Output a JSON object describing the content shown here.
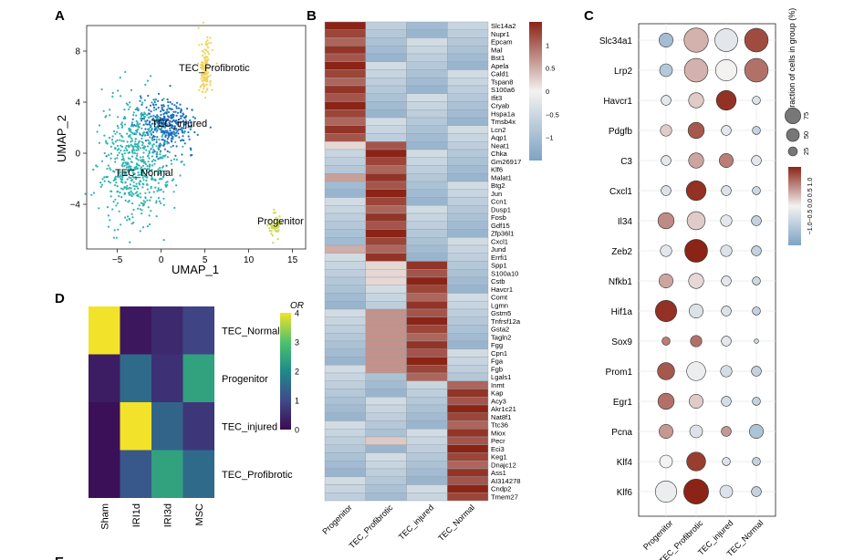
{
  "panels": {
    "A": "A",
    "B": "B",
    "C": "C",
    "D": "D",
    "E": "E"
  },
  "colors": {
    "tec_normal": "#2db3b0",
    "tec_injured": "#1f6fbf",
    "tec_profibrotic": "#f2d35a",
    "progenitor": "#cbd84a",
    "hm_low": "#7ea3c4",
    "hm_mid": "#f3f2f1",
    "hm_high": "#8b2416",
    "or_low": "#3b0a52",
    "or_high": "#f2e32a"
  },
  "chart_data": [
    {
      "type": "scatter",
      "panel": "A",
      "xlabel": "UMAP_1",
      "ylabel": "UMAP_2",
      "xticks": [
        -5,
        0,
        5,
        10,
        15
      ],
      "yticks": [
        8,
        4,
        0,
        -4
      ],
      "xlim": [
        -8.5,
        16.5
      ],
      "ylim": [
        -7.5,
        10
      ],
      "clusters": [
        {
          "label": "TEC_Profibrotic",
          "color": "#f2d35a",
          "cx": 5.0,
          "cy": 6.6,
          "sx": 0.35,
          "sy": 1.1,
          "n": 150
        },
        {
          "label": "TEC_injured",
          "color": "#1f6fbf",
          "cx": 0.6,
          "cy": 2.2,
          "sx": 1.6,
          "sy": 1.0,
          "n": 360
        },
        {
          "label": "TEC_Normal",
          "color": "#2db3b0",
          "cx": -2.8,
          "cy": -0.6,
          "sx": 2.0,
          "sy": 2.3,
          "n": 620
        },
        {
          "label": "Progenitor",
          "color": "#cbd84a",
          "cx": 13.0,
          "cy": -5.7,
          "sx": 0.35,
          "sy": 0.45,
          "n": 60
        }
      ]
    },
    {
      "type": "heatmap",
      "panel": "B",
      "columns": [
        "Progenitor",
        "TEC_Profibrotic",
        "TEC_injured",
        "TEC_Normal"
      ],
      "rows": [
        "Slc14a2",
        "Nupr1",
        "Epcam",
        "Mal",
        "Bst1",
        "Apela",
        "Cald1",
        "Tspan8",
        "S100a6",
        "Ifit3",
        "Cryab",
        "Hspa1a",
        "Tmsb4x",
        "Lcn2",
        "Aqp1",
        "Neat1",
        "Chka",
        "Gm26917",
        "Klf6",
        "Malat1",
        "Btg2",
        "Jun",
        "Ccn1",
        "Dusp1",
        "Fosb",
        "Gdf15",
        "Zfp36l1",
        "Cxcl1",
        "Jund",
        "Errfi1",
        "Spp1",
        "S100a10",
        "Cstb",
        "Havcr1",
        "Comt",
        "Lgmn",
        "Gstm5",
        "Tnfrsf12a",
        "Gsta2",
        "Tagln2",
        "Fgg",
        "Cpn1",
        "Fga",
        "Fgb",
        "Lgals1",
        "Inmt",
        "Kap",
        "Acy3",
        "Akr1c21",
        "Nat8f1",
        "Ttc36",
        "Miox",
        "Pecr",
        "Eci3",
        "Keg1",
        "Dnajc12",
        "Ass1",
        "AI314278",
        "Cndp2",
        "Tmem27"
      ],
      "blocks": [
        [
          0,
          15
        ],
        [
          15,
          30
        ],
        [
          30,
          45
        ],
        [
          45,
          60
        ]
      ],
      "high": 1.5,
      "low": -0.8,
      "legend_ticks": [
        1,
        0.5,
        0,
        -0.5,
        -1
      ],
      "vmin": -1.5,
      "vmax": 1.5
    },
    {
      "type": "dot",
      "panel": "C",
      "genes": [
        "Slc34a1",
        "Lrp2",
        "Havcr1",
        "Pdgfb",
        "C3",
        "Cxcl1",
        "Il34",
        "Zeb2",
        "Nfkb1",
        "Hif1a",
        "Sox9",
        "Prom1",
        "Egr1",
        "Pcna",
        "Klf4",
        "Klf6"
      ],
      "groups": [
        "Progenitor",
        "TEC_Profibrotic",
        "TEC_injured",
        "TEC_Normal"
      ],
      "size_pct": [
        [
          30,
          90,
          80,
          85
        ],
        [
          25,
          85,
          70,
          85
        ],
        [
          15,
          35,
          60,
          10
        ],
        [
          20,
          40,
          15,
          10
        ],
        [
          15,
          35,
          30,
          15
        ],
        [
          15,
          60,
          15,
          10
        ],
        [
          40,
          50,
          20,
          15
        ],
        [
          20,
          80,
          20,
          15
        ],
        [
          30,
          35,
          15,
          10
        ],
        [
          70,
          30,
          15,
          10
        ],
        [
          10,
          20,
          15,
          3
        ],
        [
          45,
          55,
          20,
          15
        ],
        [
          40,
          30,
          15,
          10
        ],
        [
          30,
          25,
          15,
          30
        ],
        [
          25,
          55,
          10,
          10
        ],
        [
          70,
          95,
          25,
          15
        ]
      ],
      "expr": [
        [
          -1.0,
          0.5,
          -0.2,
          1.3
        ],
        [
          -0.8,
          0.5,
          0,
          1.0
        ],
        [
          -0.2,
          0.3,
          1.5,
          -0.3
        ],
        [
          0.3,
          1.2,
          -0.2,
          -0.6
        ],
        [
          -0.2,
          0.6,
          0.9,
          -0.2
        ],
        [
          -0.3,
          1.5,
          -0.3,
          -0.5
        ],
        [
          0.8,
          0.3,
          -0.2,
          -0.6
        ],
        [
          -0.2,
          1.6,
          -0.3,
          -0.6
        ],
        [
          0.6,
          0.2,
          -0.2,
          -0.5
        ],
        [
          1.5,
          -0.3,
          -0.3,
          -0.6
        ],
        [
          0.9,
          1.0,
          -0.2,
          -0.5
        ],
        [
          1.2,
          -0.1,
          -0.4,
          -0.6
        ],
        [
          1.0,
          0.3,
          -0.4,
          -0.6
        ],
        [
          0.7,
          -0.3,
          0.7,
          -0.9
        ],
        [
          0,
          1.4,
          -0.3,
          -0.6
        ],
        [
          -0.1,
          1.6,
          -0.3,
          -0.6
        ]
      ],
      "size_legend_title": "Fraction of cells in group (%)",
      "size_legend_ticks": [
        75,
        50,
        25
      ],
      "color_legend_ticks": "−1.0−0.5 0.0 0.5 1.0",
      "vmin": -1.5,
      "vmax": 1.6
    },
    {
      "type": "heatmap",
      "panel": "D",
      "xlabels": [
        "Sham",
        "IRI1d",
        "IRI3d",
        "MSC"
      ],
      "ylabels": [
        "TEC_Normal",
        "Progenitor",
        "TEC_injured",
        "TEC_Profibrotic"
      ],
      "values": [
        [
          4.0,
          0.2,
          0.5,
          0.9
        ],
        [
          0.3,
          1.5,
          0.6,
          2.4
        ],
        [
          0.1,
          4.0,
          1.4,
          0.7
        ],
        [
          0.1,
          1.2,
          2.4,
          1.5
        ]
      ],
      "legend_title": "OR",
      "legend_ticks": [
        4,
        3,
        2,
        1,
        0
      ],
      "vmin": 0,
      "vmax": 4
    }
  ]
}
